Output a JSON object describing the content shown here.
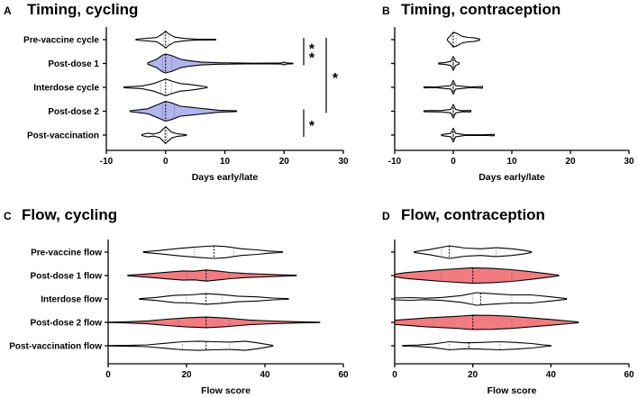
{
  "colors": {
    "blue_fill": "#b3b3ee",
    "red_fill": "#f07c82",
    "white_fill": "#ffffff",
    "line": "#000000"
  },
  "chart_data": [
    {
      "letter": "A",
      "title": "Timing, cycling",
      "type": "violin",
      "xlabel": "Days early/late",
      "xlim": [
        -10,
        30
      ],
      "ticks": [
        "-10",
        "0",
        "10",
        "20",
        "30"
      ],
      "tick_values": [
        -10,
        0,
        10,
        20,
        30
      ],
      "rows": [
        {
          "label": "Pre-vaccine cycle",
          "fill": "white",
          "min": -5,
          "max": 8.5,
          "median": 0,
          "q1": -0.3,
          "q3": 0.5,
          "width": 0.85,
          "profile": [
            [
              -5,
              0.05
            ],
            [
              -1.5,
              0.25
            ],
            [
              -0.5,
              0.7
            ],
            [
              0,
              1
            ],
            [
              0.5,
              0.7
            ],
            [
              1.5,
              0.3
            ],
            [
              3,
              0.15
            ],
            [
              5,
              0.06
            ],
            [
              8.5,
              0.03
            ]
          ]
        },
        {
          "label": "Post-dose 1",
          "fill": "blue",
          "min": -3,
          "max": 21.5,
          "median": 0,
          "q1": -0.5,
          "q3": 1,
          "width": 0.95,
          "profile": [
            [
              -3,
              0.08
            ],
            [
              -1.5,
              0.45
            ],
            [
              -0.5,
              0.9
            ],
            [
              0,
              1
            ],
            [
              1,
              0.85
            ],
            [
              2.5,
              0.45
            ],
            [
              4,
              0.3
            ],
            [
              6,
              0.15
            ],
            [
              9,
              0.08
            ],
            [
              15,
              0.03
            ],
            [
              19.5,
              0.06
            ],
            [
              20,
              0.15
            ],
            [
              20.5,
              0.06
            ],
            [
              21.5,
              0.03
            ]
          ]
        },
        {
          "label": "Interdose cycle",
          "fill": "white",
          "min": -7,
          "max": 7,
          "median": 0,
          "q1": -0.8,
          "q3": 1,
          "width": 0.85,
          "profile": [
            [
              -7,
              0.04
            ],
            [
              -4,
              0.15
            ],
            [
              -2,
              0.45
            ],
            [
              -0.5,
              0.85
            ],
            [
              0,
              1
            ],
            [
              1,
              0.75
            ],
            [
              2.5,
              0.45
            ],
            [
              4,
              0.35
            ],
            [
              5.5,
              0.2
            ],
            [
              7,
              0.05
            ]
          ]
        },
        {
          "label": "Post-dose 2",
          "fill": "blue",
          "min": -6,
          "max": 12,
          "median": 0,
          "q1": -0.5,
          "q3": 1.5,
          "width": 1.0,
          "profile": [
            [
              -6,
              0.05
            ],
            [
              -3,
              0.25
            ],
            [
              -1,
              0.75
            ],
            [
              0,
              1
            ],
            [
              1,
              0.85
            ],
            [
              2.5,
              0.5
            ],
            [
              4,
              0.42
            ],
            [
              5.5,
              0.32
            ],
            [
              7,
              0.22
            ],
            [
              9,
              0.1
            ],
            [
              12,
              0.04
            ]
          ]
        },
        {
          "label": "Post-vaccination",
          "fill": "white",
          "min": -4,
          "max": 3.5,
          "median": 0,
          "q1": -0.2,
          "q3": 0.3,
          "width": 0.85,
          "profile": [
            [
              -4,
              0.05
            ],
            [
              -3,
              0.22
            ],
            [
              -2,
              0.12
            ],
            [
              -1,
              0.3
            ],
            [
              0,
              1
            ],
            [
              1,
              0.35
            ],
            [
              2,
              0.15
            ],
            [
              3.5,
              0.04
            ]
          ]
        }
      ],
      "annotations": [
        {
          "label": "**",
          "from_row": 0,
          "to_row": 1
        },
        {
          "label": "*",
          "from_row": 0,
          "to_row": 3
        },
        {
          "label": "*",
          "from_row": 3,
          "to_row": 4
        }
      ]
    },
    {
      "letter": "B",
      "title": "Timing, contraception",
      "type": "violin",
      "xlabel": "Days early/late",
      "xlim": [
        -10,
        30
      ],
      "ticks": [
        "-10",
        "0",
        "10",
        "20",
        "30"
      ],
      "tick_values": [
        -10,
        0,
        10,
        20,
        30
      ],
      "rows": [
        {
          "label": "",
          "fill": "white",
          "min": -1,
          "max": 4.5,
          "median": 0,
          "q1": -0.3,
          "q3": 0.5,
          "width": 0.75,
          "profile": [
            [
              -1,
              0.1
            ],
            [
              -0.3,
              0.7
            ],
            [
              0,
              1
            ],
            [
              0.6,
              0.85
            ],
            [
              1.5,
              0.45
            ],
            [
              2.5,
              0.3
            ],
            [
              3.5,
              0.25
            ],
            [
              4.5,
              0.08
            ]
          ]
        },
        {
          "label": "",
          "fill": "white",
          "min": -2.5,
          "max": 1,
          "median": 0,
          "q1": -0.1,
          "q3": 0.1,
          "width": 0.7,
          "profile": [
            [
              -2.5,
              0.08
            ],
            [
              -1.5,
              0.12
            ],
            [
              -0.4,
              0.3
            ],
            [
              0,
              1
            ],
            [
              0.4,
              0.3
            ],
            [
              1,
              0.08
            ]
          ]
        },
        {
          "label": "",
          "fill": "white",
          "min": -5,
          "max": 5,
          "median": 0,
          "q1": -0.1,
          "q3": 0.1,
          "width": 0.7,
          "profile": [
            [
              -5,
              0.08
            ],
            [
              -3,
              0.04
            ],
            [
              -0.4,
              0.25
            ],
            [
              0,
              1
            ],
            [
              0.4,
              0.25
            ],
            [
              3,
              0.04
            ],
            [
              5,
              0.12
            ]
          ]
        },
        {
          "label": "",
          "fill": "white",
          "min": -5,
          "max": 3,
          "median": 0,
          "q1": -0.1,
          "q3": 0.1,
          "width": 0.7,
          "profile": [
            [
              -5,
              0.08
            ],
            [
              -2,
              0.1
            ],
            [
              -0.4,
              0.25
            ],
            [
              0,
              1
            ],
            [
              0.4,
              0.25
            ],
            [
              1.5,
              0.08
            ],
            [
              3,
              0.1
            ]
          ]
        },
        {
          "label": "",
          "fill": "white",
          "min": -2,
          "max": 7,
          "median": 0,
          "q1": -0.1,
          "q3": 0.1,
          "width": 0.7,
          "profile": [
            [
              -2,
              0.08
            ],
            [
              -0.4,
              0.25
            ],
            [
              0,
              1
            ],
            [
              0.4,
              0.25
            ],
            [
              2,
              0.05
            ],
            [
              5,
              0.04
            ],
            [
              7,
              0.1
            ]
          ]
        }
      ],
      "annotations": []
    },
    {
      "letter": "C",
      "title": "Flow, cycling",
      "type": "violin",
      "xlabel": "Flow score",
      "xlim": [
        0,
        60
      ],
      "ticks": [
        "0",
        "20",
        "40",
        "60"
      ],
      "tick_values": [
        0,
        20,
        40,
        60
      ],
      "rows": [
        {
          "label": "Pre-vaccine flow",
          "fill": "white",
          "min": 9,
          "max": 44.5,
          "median": 27,
          "q1": 22,
          "q3": 32,
          "width": 0.75,
          "profile": [
            [
              9,
              0.04
            ],
            [
              13,
              0.22
            ],
            [
              18,
              0.5
            ],
            [
              22,
              0.68
            ],
            [
              27,
              0.85
            ],
            [
              30,
              0.75
            ],
            [
              34,
              0.45
            ],
            [
              38,
              0.3
            ],
            [
              41,
              0.15
            ],
            [
              44.5,
              0.04
            ]
          ]
        },
        {
          "label": "Post-dose 1 flow",
          "fill": "red",
          "min": 5,
          "max": 48,
          "median": 25,
          "q1": 20,
          "q3": 31,
          "width": 0.75,
          "profile": [
            [
              5,
              0.04
            ],
            [
              10,
              0.22
            ],
            [
              15,
              0.45
            ],
            [
              19,
              0.62
            ],
            [
              22,
              0.58
            ],
            [
              25,
              0.75
            ],
            [
              28,
              0.6
            ],
            [
              31,
              0.42
            ],
            [
              35,
              0.28
            ],
            [
              40,
              0.18
            ],
            [
              44,
              0.1
            ],
            [
              48,
              0.04
            ]
          ]
        },
        {
          "label": "Interdose flow",
          "fill": "white",
          "min": 8,
          "max": 46,
          "median": 25,
          "q1": 20,
          "q3": 29,
          "width": 0.75,
          "profile": [
            [
              8,
              0.04
            ],
            [
              12,
              0.2
            ],
            [
              17,
              0.5
            ],
            [
              21,
              0.55
            ],
            [
              25,
              0.72
            ],
            [
              29,
              0.58
            ],
            [
              33,
              0.38
            ],
            [
              38,
              0.28
            ],
            [
              42,
              0.12
            ],
            [
              46,
              0.04
            ]
          ]
        },
        {
          "label": "Post-dose 2 flow",
          "fill": "red",
          "min": 0,
          "max": 54,
          "median": 25,
          "q1": 18,
          "q3": 31,
          "width": 0.75,
          "profile": [
            [
              0,
              0.03
            ],
            [
              5,
              0.08
            ],
            [
              10,
              0.2
            ],
            [
              15,
              0.42
            ],
            [
              20,
              0.62
            ],
            [
              25,
              0.72
            ],
            [
              30,
              0.58
            ],
            [
              36,
              0.32
            ],
            [
              42,
              0.18
            ],
            [
              48,
              0.08
            ],
            [
              54,
              0.03
            ]
          ]
        },
        {
          "label": "Post-vaccination flow",
          "fill": "white",
          "min": 0,
          "max": 42,
          "median": 25,
          "q1": 19,
          "q3": 31,
          "width": 0.75,
          "profile": [
            [
              0,
              0.03
            ],
            [
              5,
              0.05
            ],
            [
              10,
              0.12
            ],
            [
              15,
              0.35
            ],
            [
              19,
              0.55
            ],
            [
              23,
              0.62
            ],
            [
              27,
              0.55
            ],
            [
              31,
              0.5
            ],
            [
              35,
              0.62
            ],
            [
              38,
              0.4
            ],
            [
              42,
              0.05
            ]
          ]
        }
      ],
      "annotations": []
    },
    {
      "letter": "D",
      "title": "Flow, contraception",
      "type": "violin",
      "xlabel": "Flow score",
      "xlim": [
        0,
        60
      ],
      "ticks": [
        "0",
        "20",
        "40",
        "60"
      ],
      "tick_values": [
        0,
        20,
        40,
        60
      ],
      "rows": [
        {
          "label": "",
          "fill": "white",
          "min": 5,
          "max": 35,
          "median": 14,
          "q1": 12,
          "q3": 26,
          "width": 0.75,
          "profile": [
            [
              5,
              0.05
            ],
            [
              9,
              0.35
            ],
            [
              14,
              0.85
            ],
            [
              18,
              0.55
            ],
            [
              22,
              0.45
            ],
            [
              26,
              0.6
            ],
            [
              30,
              0.45
            ],
            [
              33,
              0.25
            ],
            [
              35,
              0.05
            ]
          ]
        },
        {
          "label": "",
          "fill": "red",
          "min": 0,
          "max": 42,
          "median": 20,
          "q1": 12,
          "q3": 30,
          "width": 0.85,
          "profile": [
            [
              0,
              0.15
            ],
            [
              3,
              0.35
            ],
            [
              8,
              0.55
            ],
            [
              12,
              0.7
            ],
            [
              16,
              0.8
            ],
            [
              20,
              0.92
            ],
            [
              25,
              0.85
            ],
            [
              30,
              0.7
            ],
            [
              35,
              0.45
            ],
            [
              39,
              0.22
            ],
            [
              42,
              0.05
            ]
          ]
        },
        {
          "label": "",
          "fill": "white",
          "min": 0,
          "max": 44,
          "median": 22,
          "q1": 20,
          "q3": 30,
          "width": 0.75,
          "profile": [
            [
              0,
              0.12
            ],
            [
              4,
              0.18
            ],
            [
              8,
              0.1
            ],
            [
              12,
              0.2
            ],
            [
              17,
              0.45
            ],
            [
              21,
              0.85
            ],
            [
              25,
              0.7
            ],
            [
              30,
              0.55
            ],
            [
              35,
              0.55
            ],
            [
              40,
              0.28
            ],
            [
              44,
              0.05
            ]
          ]
        },
        {
          "label": "",
          "fill": "red",
          "min": 0,
          "max": 47,
          "median": 20,
          "q1": 10,
          "q3": 30,
          "width": 0.85,
          "profile": [
            [
              0,
              0.25
            ],
            [
              4,
              0.38
            ],
            [
              8,
              0.52
            ],
            [
              12,
              0.62
            ],
            [
              16,
              0.72
            ],
            [
              20,
              0.85
            ],
            [
              25,
              0.82
            ],
            [
              30,
              0.72
            ],
            [
              35,
              0.52
            ],
            [
              41,
              0.3
            ],
            [
              47,
              0.05
            ]
          ]
        },
        {
          "label": "",
          "fill": "white",
          "min": 2,
          "max": 40,
          "median": 19,
          "q1": 14,
          "q3": 27,
          "width": 0.75,
          "profile": [
            [
              2,
              0.04
            ],
            [
              6,
              0.1
            ],
            [
              10,
              0.25
            ],
            [
              14,
              0.55
            ],
            [
              18,
              0.4
            ],
            [
              22,
              0.45
            ],
            [
              27,
              0.55
            ],
            [
              31,
              0.45
            ],
            [
              35,
              0.3
            ],
            [
              38,
              0.12
            ],
            [
              40,
              0.04
            ]
          ]
        }
      ],
      "annotations": []
    }
  ]
}
